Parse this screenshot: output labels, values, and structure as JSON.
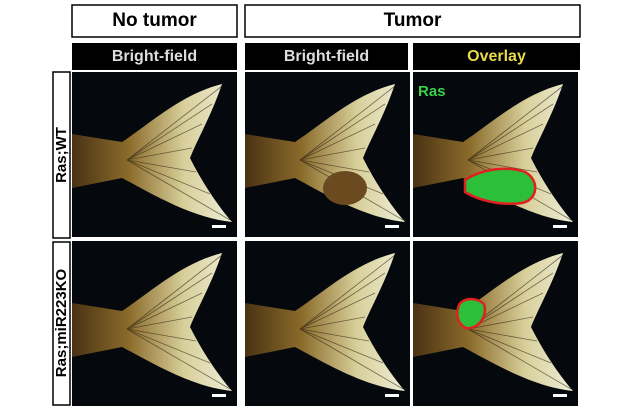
{
  "header": {
    "groups": [
      "No tumor",
      "Tumor"
    ]
  },
  "columns": [
    "Bright-field",
    "Bright-field",
    "Overlay"
  ],
  "rows": [
    "Ras;WT",
    "Ras;miR223KO"
  ],
  "overlay_label": "Ras"
}
